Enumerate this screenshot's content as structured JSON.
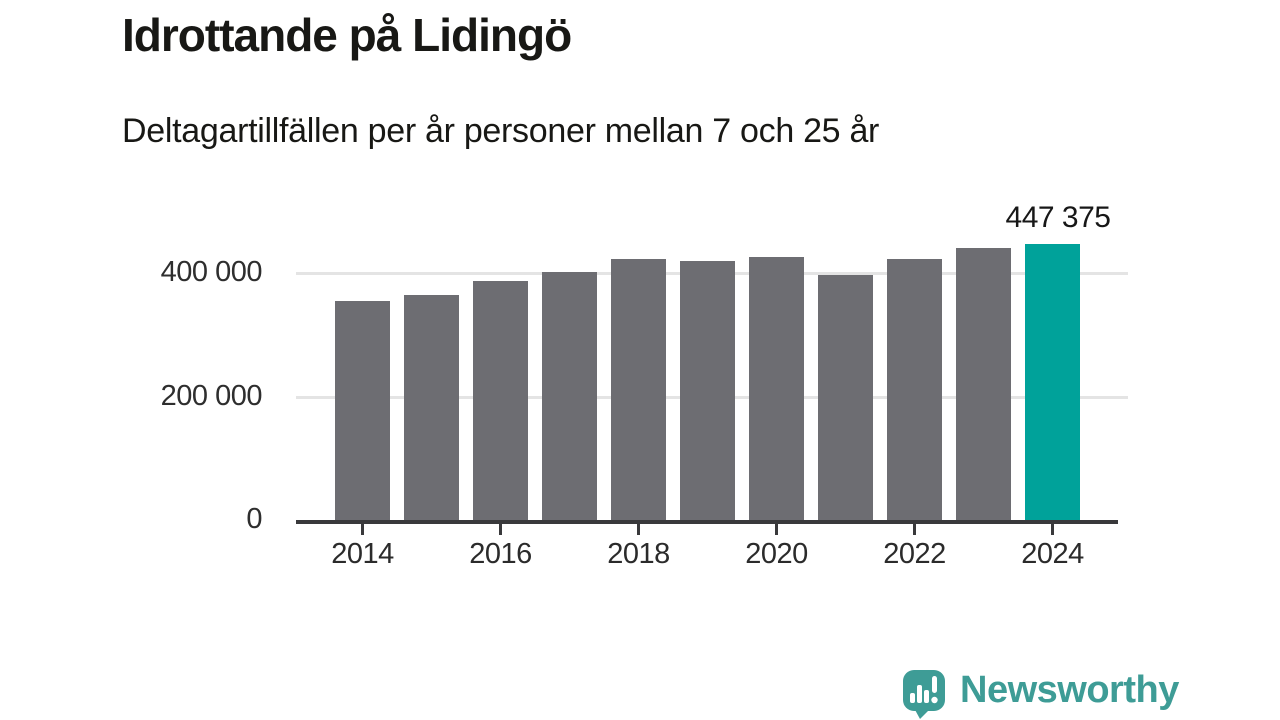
{
  "header": {
    "title": "Idrottande på Lidingö",
    "subtitle": "Deltagartillfällen per år personer mellan 7 och 25 år"
  },
  "chart_data": {
    "type": "bar",
    "title": "Idrottande på Lidingö",
    "subtitle": "Deltagartillfällen per år personer mellan 7 och 25 år",
    "xlabel": "",
    "ylabel": "",
    "categories": [
      2014,
      2015,
      2016,
      2017,
      2018,
      2019,
      2020,
      2021,
      2022,
      2023,
      2024
    ],
    "values": [
      354000,
      365000,
      387000,
      402000,
      422000,
      419000,
      426000,
      396000,
      422000,
      441000,
      447375
    ],
    "highlight_index": 10,
    "annotation_label": "447 375",
    "yticks": [
      {
        "value": 0,
        "label": "0"
      },
      {
        "value": 200000,
        "label": "200 000"
      },
      {
        "value": 400000,
        "label": "400 000"
      }
    ],
    "xticks": [
      {
        "index": 0,
        "label": "2014"
      },
      {
        "index": 2,
        "label": "2016"
      },
      {
        "index": 4,
        "label": "2018"
      },
      {
        "index": 6,
        "label": "2020"
      },
      {
        "index": 8,
        "label": "2022"
      },
      {
        "index": 10,
        "label": "2024"
      }
    ],
    "ylim": [
      0,
      460000
    ],
    "grid": true,
    "legend": "none",
    "bar_color": "#6d6d72",
    "highlight_color": "#00a29a",
    "gridline_color": "#e4e4e4",
    "axis_color": "#39393b"
  },
  "branding": {
    "wordmark": "Newsworthy",
    "logo_icon": "speech-bubble-bar-chart-icon",
    "brand_color": "#3e9c96"
  }
}
